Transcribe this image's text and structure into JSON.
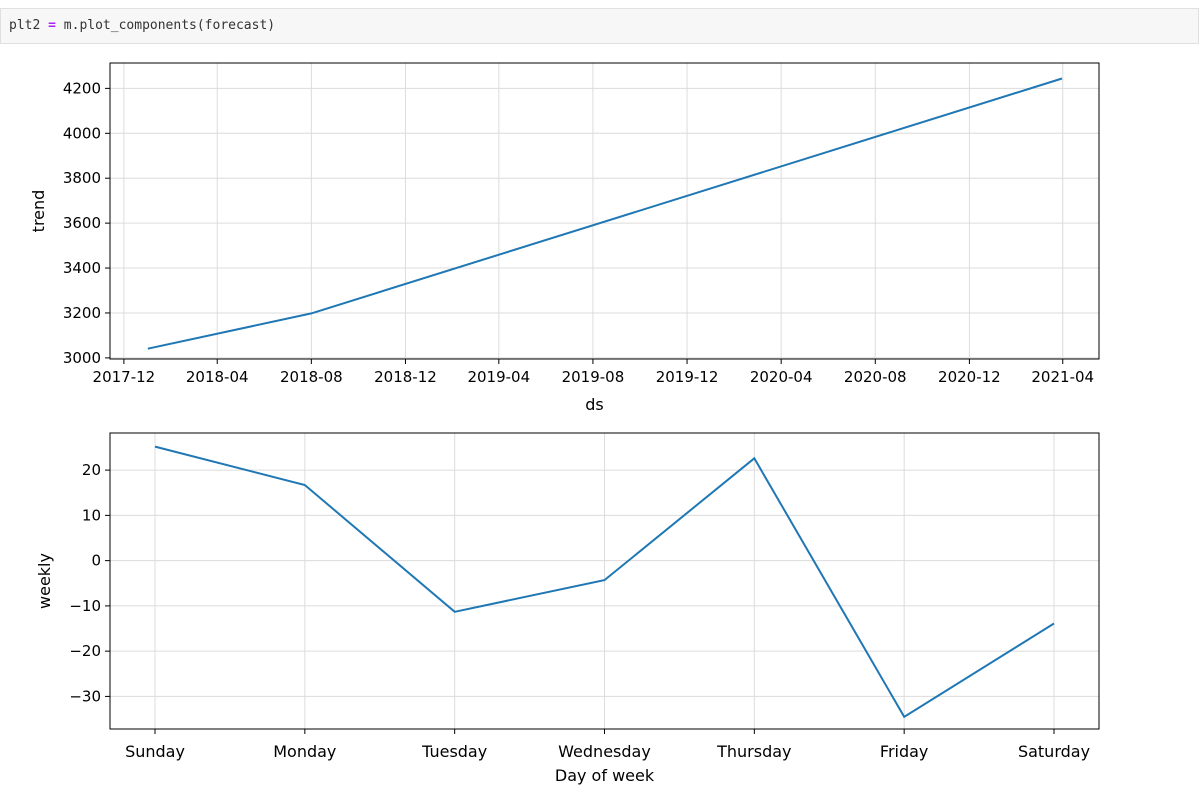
{
  "code": {
    "var": "plt2",
    "op": "=",
    "call": "m.plot_components(forecast)"
  },
  "chart_data": [
    {
      "type": "line",
      "xlabel": "ds",
      "ylabel": "trend",
      "x_ticks": [
        "2017-12",
        "2018-04",
        "2018-08",
        "2018-12",
        "2019-04",
        "2019-08",
        "2019-12",
        "2020-04",
        "2020-08",
        "2020-12",
        "2021-04"
      ],
      "y_ticks": [
        3000,
        3200,
        3400,
        3600,
        3800,
        4000,
        4200
      ],
      "ylim": [
        2995,
        4313
      ],
      "grid": true,
      "color": "#1f77b4",
      "series": [
        {
          "x": [
            "2018-01-01",
            "2018-08-01",
            "2021-03-31"
          ],
          "values": [
            3041,
            3198,
            4244
          ]
        }
      ]
    },
    {
      "type": "line",
      "xlabel": "Day of week",
      "ylabel": "weekly",
      "categories": [
        "Sunday",
        "Monday",
        "Tuesday",
        "Wednesday",
        "Thursday",
        "Friday",
        "Saturday"
      ],
      "y_ticks": [
        20,
        10,
        0,
        -10,
        -20,
        -30
      ],
      "y_tick_labels": [
        "20",
        "10",
        "0",
        "−10",
        "−20",
        "−30"
      ],
      "ylim": [
        -37.2,
        28.2
      ],
      "grid": true,
      "color": "#1f77b4",
      "series": [
        {
          "values": [
            25.2,
            16.7,
            -11.3,
            -4.3,
            22.6,
            -34.5,
            -13.9
          ]
        }
      ]
    }
  ]
}
